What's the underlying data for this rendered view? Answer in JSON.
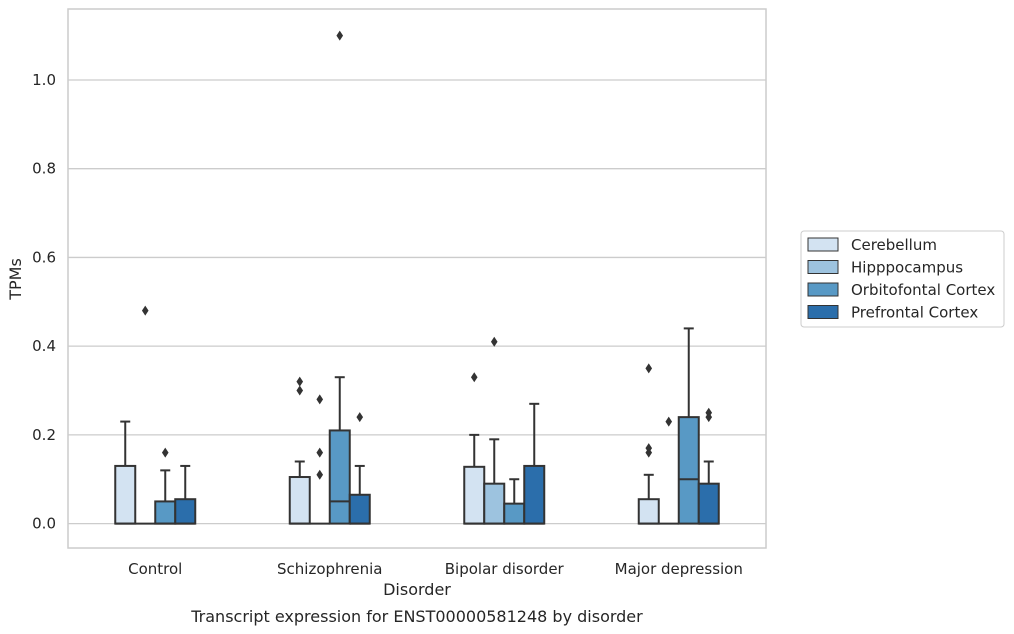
{
  "caption": "Transcript expression for ENST00000581248 by disorder",
  "chart_data": {
    "type": "box",
    "xlabel": "Disorder",
    "ylabel": "TPMs",
    "ylim": [
      -0.055,
      1.16
    ],
    "yticks": [
      "0.0",
      "0.2",
      "0.4",
      "0.6",
      "0.8",
      "1.0"
    ],
    "grid": "horizontal",
    "legend_placement": "right",
    "categories": [
      "Control",
      "Schizophrenia",
      "Bipolar disorder",
      "Major depression"
    ],
    "series": [
      {
        "name": "Cerebellum",
        "color": "#d3e3f2",
        "boxes": [
          {
            "q1": 0.0,
            "median": 0.0,
            "q3": 0.13,
            "whisker_low": 0.0,
            "whisker_high": 0.23,
            "outliers": []
          },
          {
            "q1": 0.0,
            "median": 0.0,
            "q3": 0.105,
            "whisker_low": 0.0,
            "whisker_high": 0.14,
            "outliers": [
              0.3,
              0.32
            ]
          },
          {
            "q1": 0.0,
            "median": 0.0,
            "q3": 0.128,
            "whisker_low": 0.0,
            "whisker_high": 0.2,
            "outliers": [
              0.33
            ]
          },
          {
            "q1": 0.0,
            "median": 0.0,
            "q3": 0.055,
            "whisker_low": 0.0,
            "whisker_high": 0.11,
            "outliers": [
              0.16,
              0.17,
              0.35
            ]
          }
        ]
      },
      {
        "name": "Hipppocampus",
        "color": "#9dc3df",
        "boxes": [
          {
            "q1": 0.0,
            "median": 0.0,
            "q3": 0.0,
            "whisker_low": 0.0,
            "whisker_high": 0.0,
            "outliers": [
              0.48
            ]
          },
          {
            "q1": 0.0,
            "median": 0.0,
            "q3": 0.0,
            "whisker_low": 0.0,
            "whisker_high": 0.0,
            "outliers": [
              0.11,
              0.16,
              0.28
            ]
          },
          {
            "q1": 0.0,
            "median": 0.0,
            "q3": 0.09,
            "whisker_low": 0.0,
            "whisker_high": 0.19,
            "outliers": [
              0.41
            ]
          },
          {
            "q1": 0.0,
            "median": 0.0,
            "q3": 0.0,
            "whisker_low": 0.0,
            "whisker_high": 0.0,
            "outliers": [
              0.23
            ]
          }
        ]
      },
      {
        "name": "Orbitofontal Cortex",
        "color": "#5899c5",
        "boxes": [
          {
            "q1": 0.0,
            "median": 0.0,
            "q3": 0.05,
            "whisker_low": 0.0,
            "whisker_high": 0.12,
            "outliers": [
              0.16
            ]
          },
          {
            "q1": 0.0,
            "median": 0.05,
            "q3": 0.21,
            "whisker_low": 0.0,
            "whisker_high": 0.33,
            "outliers": [
              1.1
            ]
          },
          {
            "q1": 0.0,
            "median": 0.0,
            "q3": 0.045,
            "whisker_low": 0.0,
            "whisker_high": 0.1,
            "outliers": []
          },
          {
            "q1": 0.0,
            "median": 0.1,
            "q3": 0.24,
            "whisker_low": 0.0,
            "whisker_high": 0.44,
            "outliers": []
          }
        ]
      },
      {
        "name": "Prefrontal Cortex",
        "color": "#2b6eab",
        "boxes": [
          {
            "q1": 0.0,
            "median": 0.0,
            "q3": 0.055,
            "whisker_low": 0.0,
            "whisker_high": 0.13,
            "outliers": []
          },
          {
            "q1": 0.0,
            "median": 0.0,
            "q3": 0.065,
            "whisker_low": 0.0,
            "whisker_high": 0.13,
            "outliers": [
              0.24
            ]
          },
          {
            "q1": 0.0,
            "median": 0.0,
            "q3": 0.13,
            "whisker_low": 0.0,
            "whisker_high": 0.27,
            "outliers": []
          },
          {
            "q1": 0.0,
            "median": 0.0,
            "q3": 0.09,
            "whisker_low": 0.0,
            "whisker_high": 0.14,
            "outliers": [
              0.24,
              0.25
            ]
          }
        ]
      }
    ]
  }
}
